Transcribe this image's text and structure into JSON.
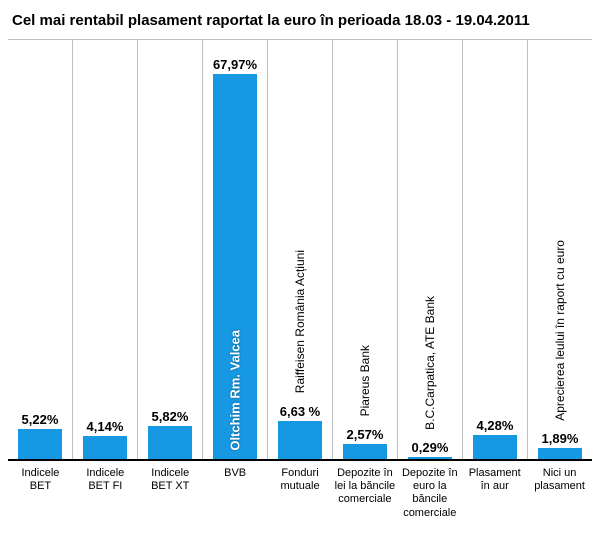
{
  "chart": {
    "type": "bar",
    "title": "Cel mai rentabil plasament raportat la euro în perioada 18.03 - 19.04.2011",
    "title_fontsize": 15,
    "title_fontweight": "bold",
    "background_color": "#ffffff",
    "grid_color": "#bfbfbf",
    "baseline_color": "#000000",
    "bar_color": "#1798e2",
    "bar_width_ratio": 0.7,
    "value_label_fontsize": 13,
    "value_label_fontweight": "bold",
    "value_label_color": "#000000",
    "inner_label_color": "#ffffff",
    "side_label_color": "#000000",
    "x_label_fontsize": 11,
    "ymax": 74,
    "categories": [
      {
        "x_label": "Indicele BET",
        "value": 5.22,
        "value_text": "5,22%",
        "side_label": ""
      },
      {
        "x_label": "Indicele BET FI",
        "value": 4.14,
        "value_text": "4,14%",
        "side_label": ""
      },
      {
        "x_label": "Indicele BET XT",
        "value": 5.82,
        "value_text": "5,82%",
        "side_label": ""
      },
      {
        "x_label": "BVB",
        "value": 67.97,
        "value_text": "67,97%",
        "side_label": "",
        "inner_label": "Oltchim Rm. Valcea"
      },
      {
        "x_label": "Fonduri mutuale",
        "value": 6.63,
        "value_text": "6,63 %",
        "side_label": "Raiffeisen România Acțiuni"
      },
      {
        "x_label": "Depozite în lei la băncile comerciale",
        "value": 2.57,
        "value_text": "2,57%",
        "side_label": "Piareus Bank"
      },
      {
        "x_label": "Depozite în euro la băncile comerciale",
        "value": 0.29,
        "value_text": "0,29%",
        "side_label": "B.C.Carpatica, ATE Bank"
      },
      {
        "x_label": "Plasament în aur",
        "value": 4.28,
        "value_text": "4,28%",
        "side_label": ""
      },
      {
        "x_label": "Nici un plasament",
        "value": 1.89,
        "value_text": "1,89%",
        "side_label": "Aprecierea leului în raport cu euro"
      }
    ]
  }
}
